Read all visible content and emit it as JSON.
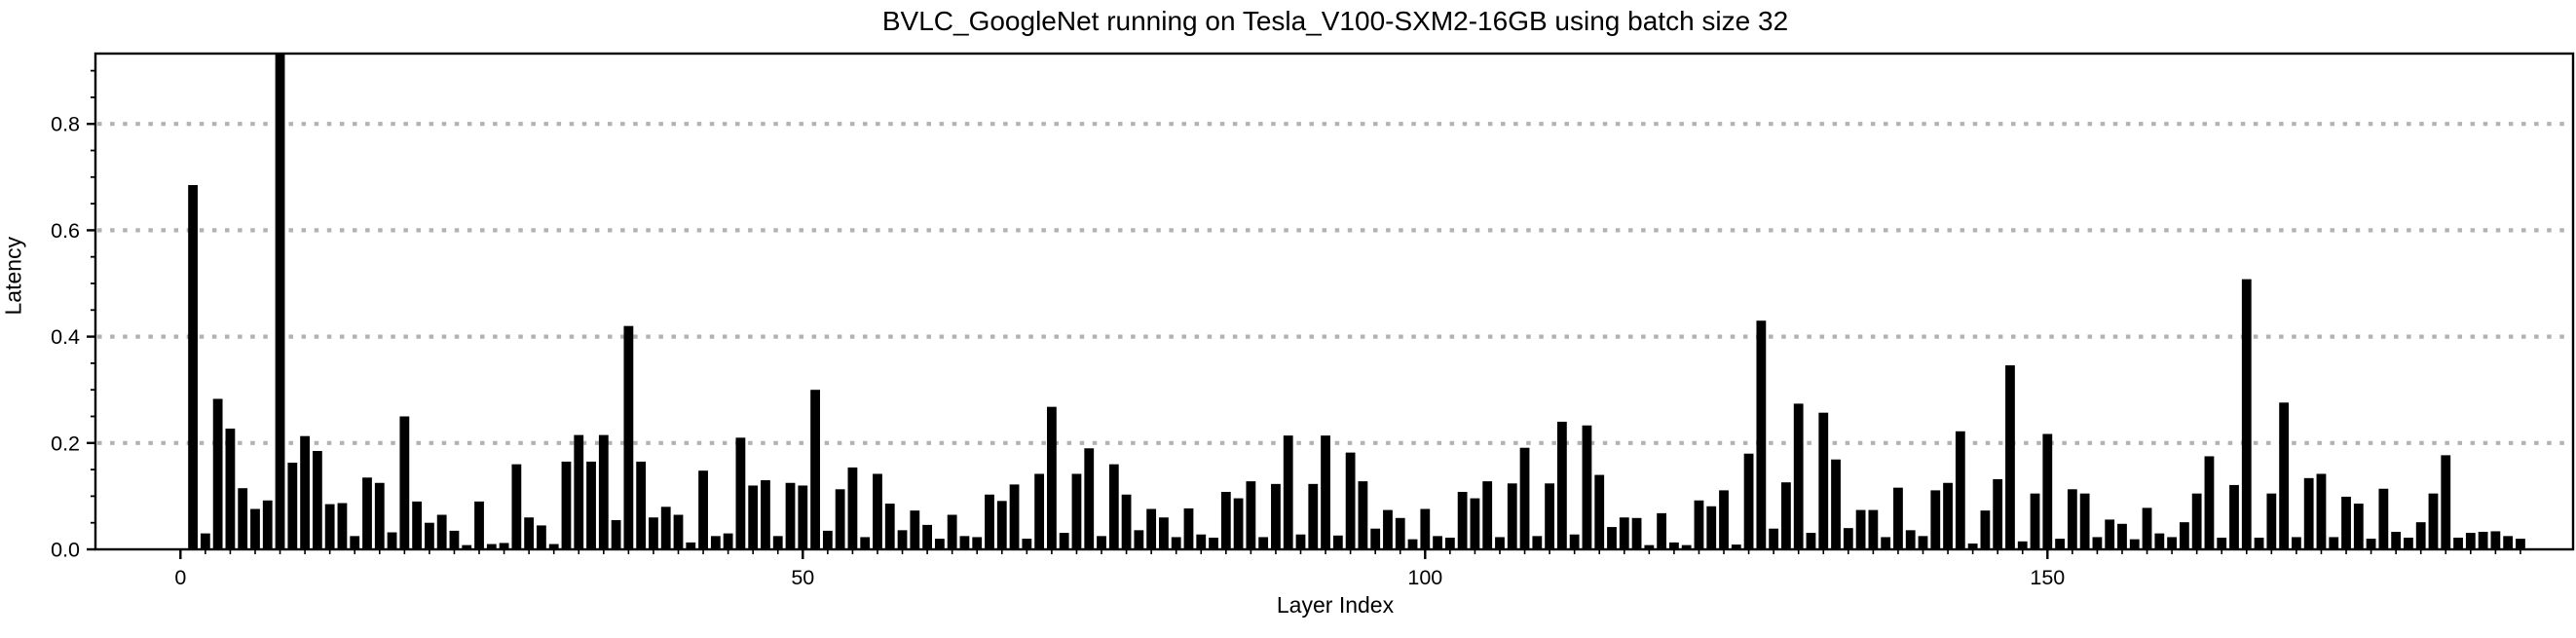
{
  "figure": {
    "title": "BVLC_GoogleNet running on Tesla_V100-SXM2-16GB using batch size 32",
    "background_color": "#ffffff"
  },
  "chart_data": {
    "type": "bar",
    "title": "BVLC_GoogleNet running on Tesla_V100-SXM2-16GB using batch size 32",
    "xlabel": "Layer Index",
    "ylabel": "Latency",
    "bar_color": "#000000",
    "grid_color": "#b2b2b2",
    "axis_color": "#000000",
    "grid": "horizontal dotted lines at major y ticks",
    "legend": "none",
    "x_tick_labels": [
      "0",
      "50",
      "100",
      "150"
    ],
    "x_tick_values": [
      0,
      50,
      100,
      150
    ],
    "y_tick_labels": [
      "0.0",
      "0.2",
      "0.4",
      "0.6",
      "0.8"
    ],
    "y_tick_values": [
      0.0,
      0.2,
      0.4,
      0.6,
      0.8
    ],
    "y_minor_tick_step": 0.05,
    "x_minor_tick_step": 2,
    "ylim": [
      0.0,
      0.932
    ],
    "x_start_index": 0,
    "values": [
      0.0,
      0.685,
      0.03,
      0.283,
      0.227,
      0.115,
      0.076,
      0.092,
      0.935,
      0.163,
      0.213,
      0.185,
      0.085,
      0.087,
      0.025,
      0.135,
      0.125,
      0.032,
      0.25,
      0.09,
      0.05,
      0.065,
      0.035,
      0.008,
      0.09,
      0.01,
      0.012,
      0.16,
      0.06,
      0.045,
      0.01,
      0.165,
      0.215,
      0.165,
      0.215,
      0.055,
      0.42,
      0.165,
      0.06,
      0.08,
      0.065,
      0.013,
      0.148,
      0.025,
      0.03,
      0.21,
      0.12,
      0.13,
      0.025,
      0.125,
      0.12,
      0.3,
      0.035,
      0.113,
      0.154,
      0.023,
      0.142,
      0.086,
      0.036,
      0.073,
      0.046,
      0.02,
      0.065,
      0.025,
      0.023,
      0.103,
      0.091,
      0.122,
      0.02,
      0.142,
      0.268,
      0.031,
      0.142,
      0.19,
      0.025,
      0.16,
      0.103,
      0.036,
      0.076,
      0.06,
      0.023,
      0.077,
      0.028,
      0.022,
      0.108,
      0.096,
      0.128,
      0.023,
      0.123,
      0.214,
      0.028,
      0.123,
      0.214,
      0.026,
      0.182,
      0.128,
      0.039,
      0.074,
      0.059,
      0.019,
      0.076,
      0.025,
      0.022,
      0.108,
      0.096,
      0.128,
      0.023,
      0.124,
      0.191,
      0.025,
      0.124,
      0.24,
      0.028,
      0.233,
      0.14,
      0.042,
      0.06,
      0.059,
      0.008,
      0.068,
      0.013,
      0.008,
      0.092,
      0.081,
      0.111,
      0.009,
      0.18,
      0.43,
      0.039,
      0.126,
      0.274,
      0.031,
      0.257,
      0.169,
      0.04,
      0.074,
      0.074,
      0.023,
      0.116,
      0.036,
      0.025,
      0.111,
      0.125,
      0.222,
      0.011,
      0.073,
      0.132,
      0.346,
      0.015,
      0.105,
      0.217,
      0.02,
      0.113,
      0.105,
      0.023,
      0.056,
      0.048,
      0.019,
      0.078,
      0.03,
      0.023,
      0.051,
      0.105,
      0.175,
      0.022,
      0.121,
      0.508,
      0.022,
      0.105,
      0.276,
      0.023,
      0.134,
      0.142,
      0.023,
      0.099,
      0.086,
      0.02,
      0.114,
      0.033,
      0.022,
      0.051,
      0.105,
      0.177,
      0.022,
      0.031,
      0.033,
      0.034,
      0.025,
      0.02
    ]
  }
}
